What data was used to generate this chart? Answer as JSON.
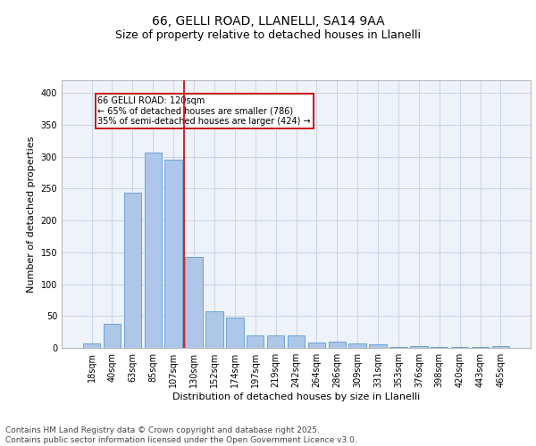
{
  "title1": "66, GELLI ROAD, LLANELLI, SA14 9AA",
  "title2": "Size of property relative to detached houses in Llanelli",
  "xlabel": "Distribution of detached houses by size in Llanelli",
  "ylabel": "Number of detached properties",
  "categories": [
    "18sqm",
    "40sqm",
    "63sqm",
    "85sqm",
    "107sqm",
    "130sqm",
    "152sqm",
    "174sqm",
    "197sqm",
    "219sqm",
    "242sqm",
    "264sqm",
    "286sqm",
    "309sqm",
    "331sqm",
    "353sqm",
    "376sqm",
    "398sqm",
    "420sqm",
    "443sqm",
    "465sqm"
  ],
  "values": [
    7,
    38,
    243,
    307,
    295,
    143,
    57,
    47,
    19,
    19,
    20,
    9,
    10,
    7,
    5,
    2,
    3,
    2,
    1,
    1,
    3
  ],
  "bar_color": "#aec6e8",
  "bar_edge_color": "#5b9bd5",
  "vline_x": 4.5,
  "annotation_text": "66 GELLI ROAD: 120sqm\n← 65% of detached houses are smaller (786)\n35% of semi-detached houses are larger (424) →",
  "annotation_box_color": "#ffffff",
  "annotation_box_edge_color": "#cc0000",
  "vline_color": "#cc0000",
  "grid_color": "#c8d4e8",
  "background_color": "#eef2f9",
  "footer_text": "Contains HM Land Registry data © Crown copyright and database right 2025.\nContains public sector information licensed under the Open Government Licence v3.0.",
  "ylim": [
    0,
    420
  ],
  "title_fontsize": 10,
  "subtitle_fontsize": 9,
  "tick_fontsize": 7,
  "ylabel_fontsize": 8,
  "xlabel_fontsize": 8,
  "footer_fontsize": 6.5
}
